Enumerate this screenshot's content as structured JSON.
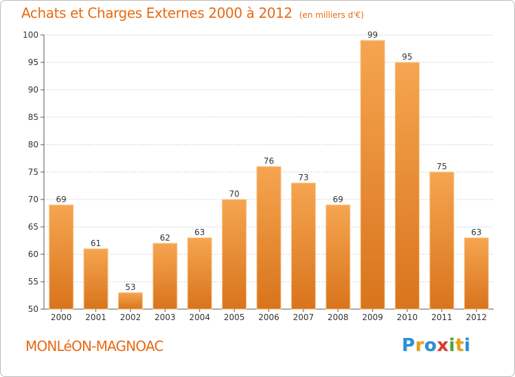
{
  "title": "Achats et Charges Externes 2000 à 2012",
  "subtitle": "(en milliers d'€)",
  "location": "MONLéON-MAGNOAC",
  "logo": {
    "text": "Proxiti",
    "letters": [
      {
        "ch": "P",
        "color": "#2a8fd6"
      },
      {
        "ch": "r",
        "color": "#e7a20f"
      },
      {
        "ch": "o",
        "color": "#2a8fd6"
      },
      {
        "ch": "x",
        "color": "#d83a2c"
      },
      {
        "ch": "i",
        "color": "#4aa83a"
      },
      {
        "ch": "t",
        "color": "#e7a20f"
      },
      {
        "ch": "i",
        "color": "#2a8fd6"
      }
    ]
  },
  "colors": {
    "accent": "#e76a12",
    "bar_top": "#f6a550",
    "bar_bottom": "#d8741c",
    "bar_edge": "#f9c58a",
    "grid": "#cccccc",
    "axis": "#555555"
  },
  "chart_data": {
    "type": "bar",
    "title": "Achats et Charges Externes 2000 à 2012",
    "subtitle": "(en milliers d'€)",
    "categories": [
      "2000",
      "2001",
      "2002",
      "2003",
      "2004",
      "2005",
      "2006",
      "2007",
      "2008",
      "2009",
      "2010",
      "2011",
      "2012"
    ],
    "values": [
      69,
      61,
      53,
      62,
      63,
      70,
      76,
      73,
      69,
      99,
      95,
      75,
      63
    ],
    "ylim": [
      50,
      100
    ],
    "yticks": [
      50,
      55,
      60,
      65,
      70,
      75,
      80,
      85,
      90,
      95,
      100
    ],
    "grid": true,
    "data_labels": true
  }
}
